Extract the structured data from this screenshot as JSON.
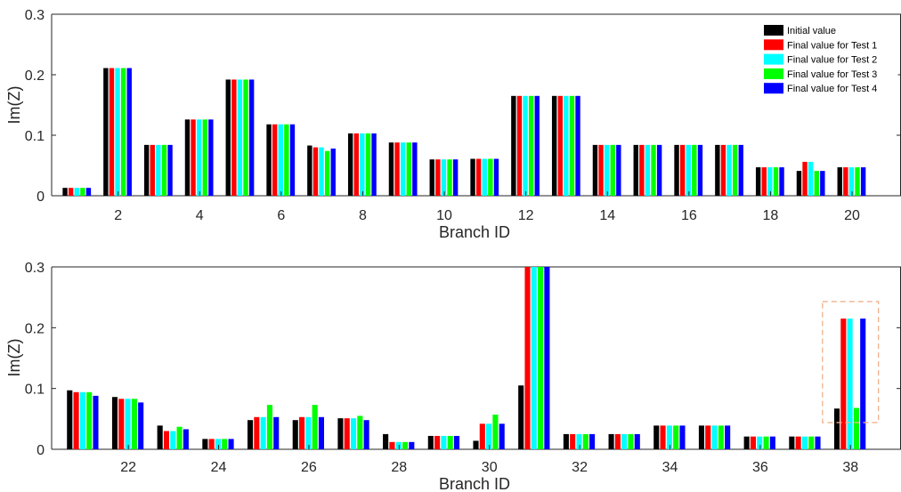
{
  "legend": [
    {
      "label": "Initial value",
      "color": "#000000"
    },
    {
      "label": "Final value for Test 1",
      "color": "#ff0000"
    },
    {
      "label": "Final value for Test 2",
      "color": "#00ffff"
    },
    {
      "label": "Final value for Test 3",
      "color": "#00ff00"
    },
    {
      "label": "Final value for Test 4",
      "color": "#0000ff"
    }
  ],
  "chart_data": [
    {
      "type": "bar",
      "xlabel": "Branch ID",
      "ylabel": "Im(Z)",
      "ylim": [
        0,
        0.3
      ],
      "yticks": [
        "0",
        "0.1",
        "0.2",
        "0.3"
      ],
      "xticks": [
        "2",
        "4",
        "6",
        "8",
        "10",
        "12",
        "14",
        "16",
        "18",
        "20"
      ],
      "categories": [
        1,
        2,
        3,
        4,
        5,
        6,
        7,
        8,
        9,
        10,
        11,
        12,
        13,
        14,
        15,
        16,
        17,
        18,
        19,
        20
      ],
      "grid": false,
      "legend_position": "top-right",
      "series": [
        {
          "name": "Initial value",
          "values": [
            0.013,
            0.211,
            0.084,
            0.126,
            0.192,
            0.118,
            0.083,
            0.103,
            0.088,
            0.06,
            0.061,
            0.165,
            0.165,
            0.084,
            0.084,
            0.084,
            0.084,
            0.047,
            0.041,
            0.047
          ]
        },
        {
          "name": "Final value for Test 1",
          "values": [
            0.013,
            0.211,
            0.084,
            0.126,
            0.192,
            0.118,
            0.08,
            0.103,
            0.088,
            0.06,
            0.061,
            0.165,
            0.165,
            0.084,
            0.084,
            0.084,
            0.084,
            0.047,
            0.056,
            0.047
          ]
        },
        {
          "name": "Final value for Test 2",
          "values": [
            0.013,
            0.211,
            0.084,
            0.126,
            0.192,
            0.118,
            0.08,
            0.103,
            0.088,
            0.06,
            0.061,
            0.165,
            0.165,
            0.084,
            0.084,
            0.084,
            0.084,
            0.047,
            0.056,
            0.047
          ]
        },
        {
          "name": "Final value for Test 3",
          "values": [
            0.013,
            0.211,
            0.084,
            0.126,
            0.192,
            0.118,
            0.074,
            0.103,
            0.088,
            0.06,
            0.061,
            0.165,
            0.165,
            0.084,
            0.084,
            0.084,
            0.084,
            0.047,
            0.041,
            0.047
          ]
        },
        {
          "name": "Final value for Test 4",
          "values": [
            0.013,
            0.211,
            0.084,
            0.126,
            0.192,
            0.118,
            0.078,
            0.103,
            0.088,
            0.06,
            0.061,
            0.165,
            0.165,
            0.084,
            0.084,
            0.084,
            0.084,
            0.047,
            0.041,
            0.047
          ]
        }
      ]
    },
    {
      "type": "bar",
      "xlabel": "Branch ID",
      "ylabel": "Im(Z)",
      "ylim": [
        0,
        0.3
      ],
      "yticks": [
        "0",
        "0.1",
        "0.2",
        "0.3"
      ],
      "xticks": [
        "22",
        "24",
        "26",
        "28",
        "30",
        "32",
        "34",
        "36",
        "38"
      ],
      "categories": [
        21,
        22,
        23,
        24,
        25,
        26,
        27,
        28,
        29,
        30,
        31,
        32,
        33,
        34,
        35,
        36,
        37,
        38
      ],
      "grid": false,
      "highlight": {
        "categories": [
          38
        ],
        "style": "dashed box"
      },
      "series": [
        {
          "name": "Initial value",
          "values": [
            0.097,
            0.086,
            0.039,
            0.017,
            0.048,
            0.048,
            0.051,
            0.025,
            0.022,
            0.014,
            0.105,
            0.025,
            0.025,
            0.039,
            0.039,
            0.021,
            0.021,
            0.067
          ]
        },
        {
          "name": "Final value for Test 1",
          "values": [
            0.094,
            0.083,
            0.03,
            0.017,
            0.053,
            0.053,
            0.051,
            0.012,
            0.022,
            0.042,
            0.3,
            0.025,
            0.025,
            0.039,
            0.039,
            0.021,
            0.021,
            0.215
          ]
        },
        {
          "name": "Final value for Test 2",
          "values": [
            0.094,
            0.083,
            0.03,
            0.017,
            0.053,
            0.053,
            0.051,
            0.012,
            0.022,
            0.042,
            0.3,
            0.025,
            0.025,
            0.039,
            0.039,
            0.021,
            0.021,
            0.215
          ]
        },
        {
          "name": "Final value for Test 3",
          "values": [
            0.094,
            0.083,
            0.037,
            0.017,
            0.073,
            0.073,
            0.055,
            0.012,
            0.022,
            0.057,
            0.3,
            0.025,
            0.025,
            0.039,
            0.039,
            0.021,
            0.021,
            0.068
          ]
        },
        {
          "name": "Final value for Test 4",
          "values": [
            0.088,
            0.077,
            0.033,
            0.017,
            0.053,
            0.053,
            0.048,
            0.012,
            0.022,
            0.042,
            0.3,
            0.025,
            0.025,
            0.039,
            0.039,
            0.021,
            0.021,
            0.215
          ]
        }
      ]
    }
  ]
}
